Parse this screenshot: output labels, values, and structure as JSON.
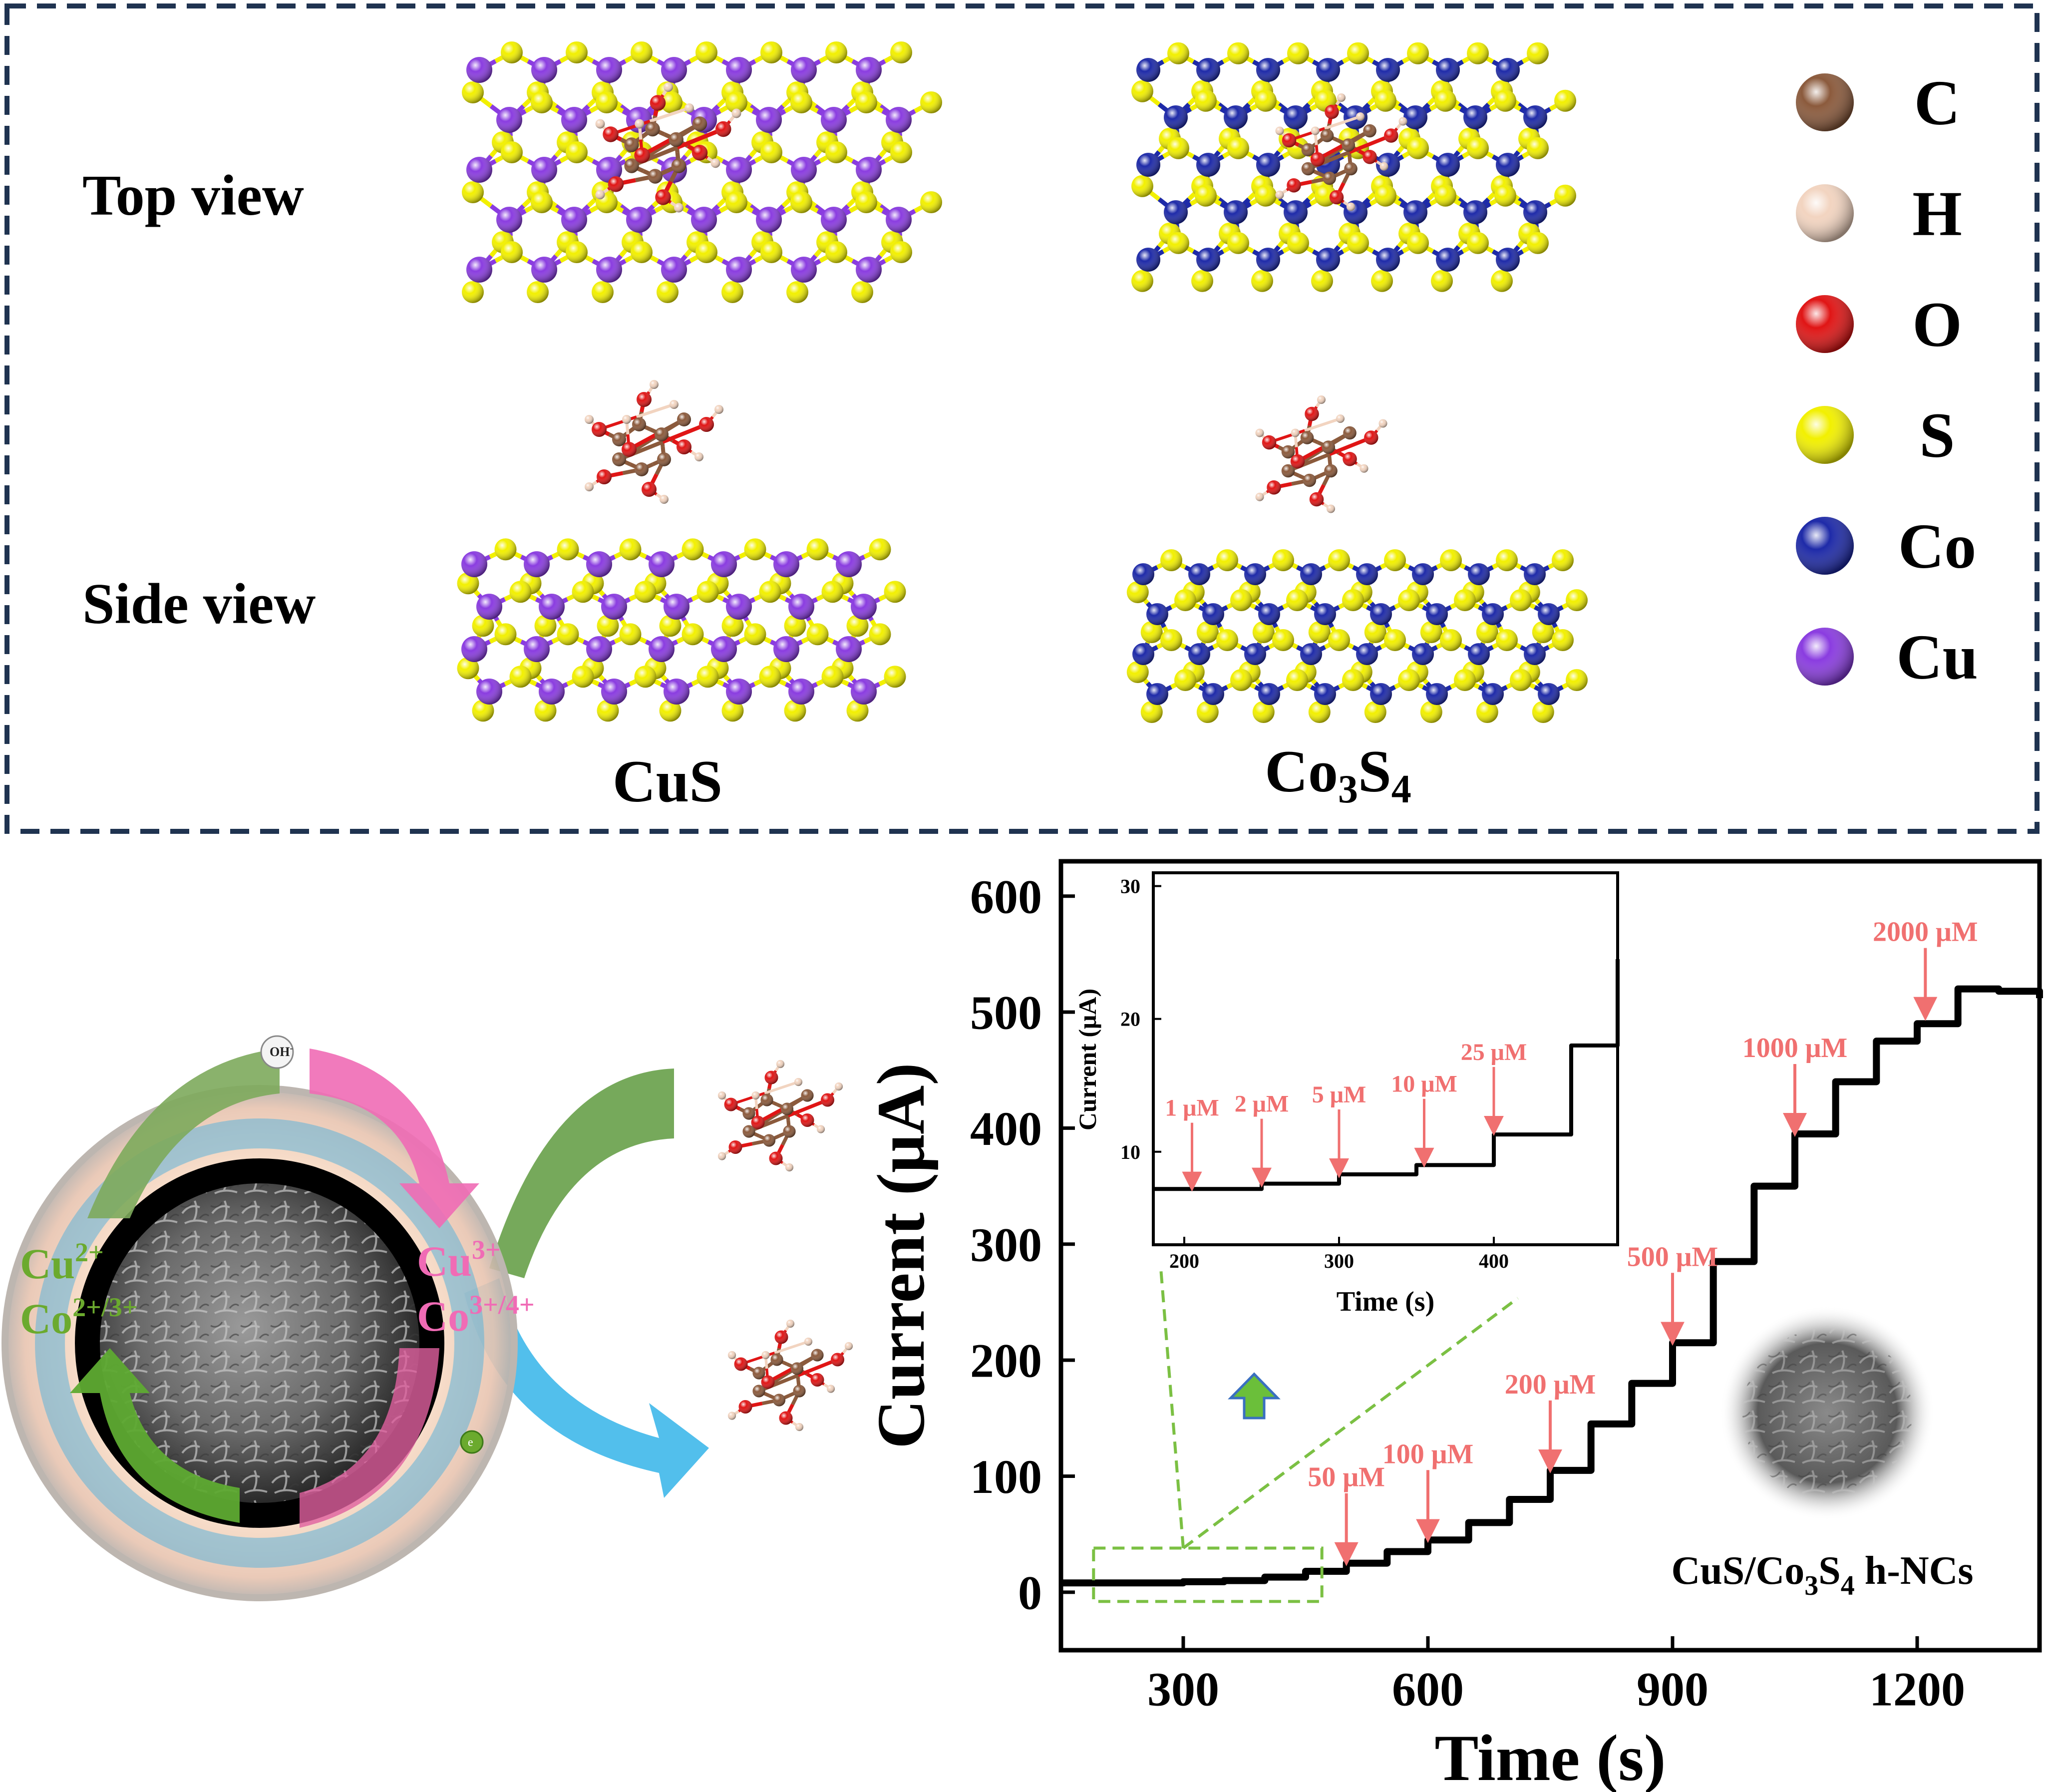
{
  "top_panel": {
    "row_labels": {
      "top": "Top view",
      "side": "Side view"
    },
    "structures": [
      {
        "id": "cus",
        "label_main": "CuS",
        "label_parts": [
          {
            "t": "CuS",
            "sub": false
          }
        ]
      },
      {
        "id": "co3s4",
        "label_main": "Co3S4",
        "label_parts": [
          {
            "t": "Co",
            "sub": false
          },
          {
            "t": "3",
            "sub": true
          },
          {
            "t": "S",
            "sub": false
          },
          {
            "t": "4",
            "sub": true
          }
        ]
      }
    ],
    "legend": [
      {
        "symbol": "C",
        "color": "#8B5A3C"
      },
      {
        "symbol": "H",
        "color": "#F2D4C0"
      },
      {
        "symbol": "O",
        "color": "#E01515"
      },
      {
        "symbol": "S",
        "color": "#F2F000"
      },
      {
        "symbol": "Co",
        "color": "#1E2AA8"
      },
      {
        "symbol": "Cu",
        "color": "#8A3CE0"
      }
    ],
    "atom_colors": {
      "Cu": "#8A3CE0",
      "Co": "#1E2AA8",
      "S": "#F2F000",
      "C": "#8B5A3C",
      "O": "#E01515",
      "H": "#F2D4C0"
    },
    "frame_color": "#1F3350"
  },
  "mechanism": {
    "ion_left_1_base": "Cu",
    "ion_left_1_sup": "2+",
    "ion_left_2_base": "Co",
    "ion_left_2_sup": "2+/3+",
    "ion_right_1_base": "Cu",
    "ion_right_1_sup": "3+",
    "ion_right_2_base": "Co",
    "ion_right_2_sup": "3+/4+",
    "oh_label": "OH",
    "oh_sup": "-",
    "electron_label": "e",
    "green_color": "#6BAA2E",
    "pink_color": "#F06BB5",
    "blue_color": "#2AB0E8"
  },
  "chart_data": [
    {
      "type": "line",
      "id": "main",
      "xlabel": "Time (s)",
      "ylabel": "Current (μA)",
      "xlim": [
        150,
        1350
      ],
      "ylim": [
        -50,
        630
      ],
      "xticks": [
        300,
        600,
        900,
        1200
      ],
      "yticks": [
        0,
        100,
        200,
        300,
        400,
        500,
        600
      ],
      "steps": [
        [
          150,
          8
        ],
        [
          200,
          8
        ],
        [
          300,
          9
        ],
        [
          350,
          10
        ],
        [
          400,
          13
        ],
        [
          450,
          18
        ],
        [
          500,
          25
        ],
        [
          550,
          35
        ],
        [
          600,
          45
        ],
        [
          650,
          60
        ],
        [
          700,
          80
        ],
        [
          750,
          105
        ],
        [
          800,
          145
        ],
        [
          850,
          180
        ],
        [
          900,
          215
        ],
        [
          950,
          285
        ],
        [
          1000,
          350
        ],
        [
          1050,
          395
        ],
        [
          1100,
          440
        ],
        [
          1150,
          475
        ],
        [
          1200,
          490
        ],
        [
          1250,
          520
        ],
        [
          1300,
          518
        ],
        [
          1350,
          512
        ]
      ],
      "annotations": [
        {
          "label": "50 μM",
          "x": 500,
          "y": 25
        },
        {
          "label": "100 μM",
          "x": 600,
          "y": 45
        },
        {
          "label": "200 μM",
          "x": 750,
          "y": 105
        },
        {
          "label": "500 μM",
          "x": 900,
          "y": 215
        },
        {
          "label": "1000 μM",
          "x": 1050,
          "y": 395
        },
        {
          "label": "2000 μM",
          "x": 1210,
          "y": 495
        }
      ],
      "material_label_parts": [
        {
          "t": "CuS/Co",
          "sub": false
        },
        {
          "t": "3",
          "sub": true
        },
        {
          "t": "S",
          "sub": false
        },
        {
          "t": "4",
          "sub": true
        },
        {
          "t": " h-NCs",
          "sub": false
        }
      ],
      "zoom_box": {
        "x": [
          190,
          470
        ],
        "y": [
          -8,
          38
        ]
      },
      "line_color": "#000000",
      "annotation_color": "#F07070"
    },
    {
      "type": "line",
      "id": "inset",
      "xlabel": "Time (s)",
      "ylabel": "Current (μA)",
      "xlim": [
        180,
        480
      ],
      "ylim": [
        3,
        31
      ],
      "xticks": [
        200,
        300,
        400
      ],
      "yticks": [
        10,
        20,
        30
      ],
      "steps": [
        [
          180,
          7.2
        ],
        [
          250,
          7.6
        ],
        [
          300,
          8.3
        ],
        [
          350,
          9
        ],
        [
          400,
          11.3
        ],
        [
          450,
          18
        ],
        [
          480,
          24.5
        ]
      ],
      "annotations": [
        {
          "label": "1 μM",
          "x": 205,
          "y": 7.3
        },
        {
          "label": "2 μM",
          "x": 250,
          "y": 7.6
        },
        {
          "label": "5 μM",
          "x": 300,
          "y": 8.3
        },
        {
          "label": "10 μM",
          "x": 355,
          "y": 9.1
        },
        {
          "label": "25 μM",
          "x": 400,
          "y": 11.5
        }
      ]
    }
  ]
}
